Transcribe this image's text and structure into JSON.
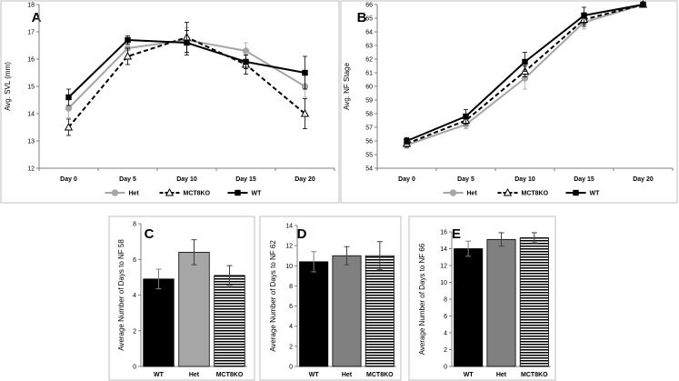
{
  "chart_data": [
    {
      "panel": "A",
      "type": "line",
      "ylabel": "Avg. SVL (mm)",
      "categories": [
        "Day 0",
        "Day 5",
        "Day 10",
        "Day 15",
        "Day 20"
      ],
      "ylim": [
        12,
        18
      ],
      "yticks": [
        "12",
        "13",
        "14",
        "15",
        "16",
        "17",
        "18"
      ],
      "grid": false,
      "legend": "bottom",
      "series": [
        {
          "name": "Het",
          "color": "#a6a6a6",
          "dash": "solid",
          "marker": "circle",
          "values": [
            14.2,
            16.4,
            16.7,
            16.3,
            15.0
          ],
          "err": [
            0.35,
            0.3,
            0.45,
            0.3,
            0.4
          ]
        },
        {
          "name": "MCT8KO",
          "color": "#000000",
          "dash": "dashed",
          "marker": "triangle",
          "values": [
            13.5,
            16.1,
            16.8,
            15.8,
            14.0
          ],
          "err": [
            0.3,
            0.3,
            0.55,
            0.35,
            0.55
          ]
        },
        {
          "name": "WT",
          "color": "#000000",
          "dash": "solid",
          "marker": "square",
          "values": [
            14.6,
            16.7,
            16.6,
            15.9,
            15.5
          ],
          "err": [
            0.3,
            0.15,
            0.45,
            0.25,
            0.6
          ]
        }
      ]
    },
    {
      "panel": "B",
      "type": "line",
      "ylabel": "Avg. NF Stage",
      "categories": [
        "Day 0",
        "Day 5",
        "Day 10",
        "Day 15",
        "Day 20"
      ],
      "ylim": [
        54,
        66
      ],
      "yticks": [
        "54",
        "55",
        "56",
        "57",
        "58",
        "59",
        "60",
        "61",
        "62",
        "63",
        "64",
        "65",
        "66"
      ],
      "grid": false,
      "legend": "bottom",
      "series": [
        {
          "name": "Het",
          "color": "#a6a6a6",
          "dash": "solid",
          "marker": "circle",
          "values": [
            55.7,
            57.2,
            60.6,
            64.7,
            66.0
          ],
          "err": [
            0.25,
            0.3,
            0.8,
            0.5,
            0
          ]
        },
        {
          "name": "MCT8KO",
          "color": "#000000",
          "dash": "dashed",
          "marker": "triangle",
          "values": [
            55.8,
            57.5,
            61.1,
            64.9,
            66.0
          ],
          "err": [
            0.25,
            0.3,
            0.4,
            0.5,
            0
          ]
        },
        {
          "name": "WT",
          "color": "#000000",
          "dash": "solid",
          "marker": "square",
          "values": [
            56.0,
            57.8,
            61.8,
            65.2,
            66.0
          ],
          "err": [
            0.25,
            0.5,
            0.7,
            0.6,
            0
          ]
        }
      ]
    },
    {
      "panel": "C",
      "type": "bar",
      "ylabel": "Average Number of Days to NF 58",
      "categories": [
        "WT",
        "Het",
        "MCT8KO"
      ],
      "values": [
        4.9,
        6.4,
        5.1
      ],
      "err": [
        0.55,
        0.7,
        0.55
      ],
      "fills": [
        "solid-black",
        "solid-gray",
        "horizontal-stripes"
      ],
      "ylim": [
        0,
        8
      ],
      "yticks": [
        "0",
        "2",
        "4",
        "6",
        "8"
      ]
    },
    {
      "panel": "D",
      "type": "bar",
      "ylabel": "Average Number of Days to NF 62",
      "categories": [
        "WT",
        "Het",
        "MCT8KO"
      ],
      "values": [
        10.4,
        11.0,
        11.0
      ],
      "err": [
        1.0,
        0.9,
        1.4
      ],
      "fills": [
        "solid-black",
        "solid-gray",
        "horizontal-stripes"
      ],
      "ylim": [
        0,
        14
      ],
      "yticks": [
        "0",
        "2",
        "4",
        "6",
        "8",
        "10",
        "12",
        "14"
      ]
    },
    {
      "panel": "E",
      "type": "bar",
      "ylabel": "Average Number of Days to NF 66",
      "categories": [
        "WT",
        "Het",
        "MCT8KO"
      ],
      "values": [
        14.0,
        15.1,
        15.3
      ],
      "err": [
        0.9,
        0.8,
        0.6
      ],
      "fills": [
        "solid-black",
        "solid-gray",
        "horizontal-stripes"
      ],
      "ylim": [
        0,
        16
      ],
      "yticks": [
        "0",
        "2",
        "4",
        "6",
        "8",
        "10",
        "12",
        "14",
        "16"
      ]
    }
  ]
}
